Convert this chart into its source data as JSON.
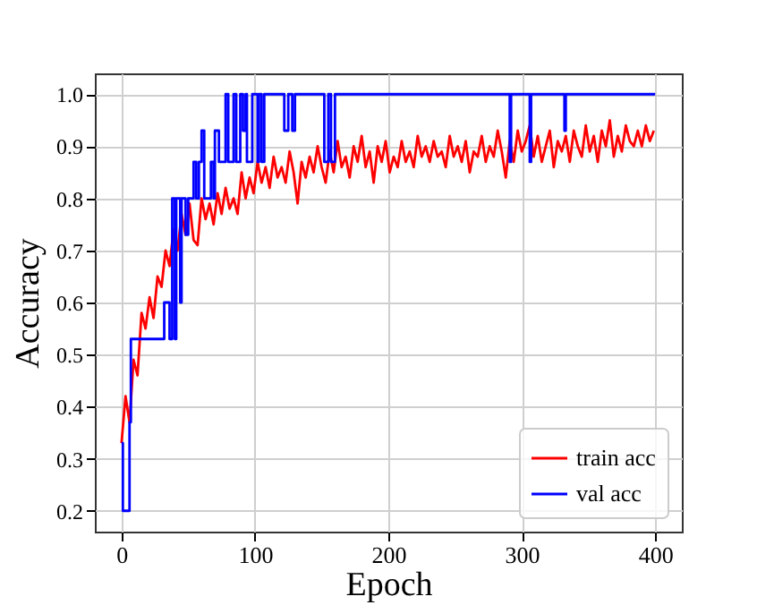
{
  "chart_data": {
    "type": "line",
    "xlabel": "Epoch",
    "ylabel": "Accuracy",
    "xlim": [
      -20,
      420
    ],
    "xticks": [
      0,
      100,
      200,
      300,
      400
    ],
    "ylim": [
      0.16,
      1.04
    ],
    "yticks": [
      0.2,
      0.3,
      0.4,
      0.5,
      0.6,
      0.7,
      0.8,
      0.9,
      {
        "value": 1,
        "label": "1.0"
      }
    ],
    "grid": true,
    "legend": "bottom right",
    "series": [
      {
        "name": "train acc",
        "color": "#ff0000",
        "type": "line",
        "x": [
          0,
          3,
          6,
          9,
          12,
          15,
          18,
          21,
          24,
          27,
          30,
          33,
          36,
          39,
          42,
          45,
          48,
          51,
          54,
          57,
          60,
          63,
          66,
          69,
          72,
          75,
          78,
          81,
          84,
          87,
          90,
          93,
          96,
          99,
          102,
          105,
          108,
          111,
          114,
          117,
          120,
          123,
          126,
          129,
          132,
          135,
          138,
          141,
          144,
          147,
          150,
          153,
          156,
          159,
          162,
          165,
          168,
          171,
          174,
          177,
          180,
          183,
          186,
          189,
          192,
          195,
          198,
          201,
          204,
          207,
          210,
          213,
          216,
          219,
          222,
          225,
          228,
          231,
          234,
          237,
          240,
          243,
          246,
          249,
          252,
          255,
          258,
          261,
          264,
          267,
          270,
          273,
          276,
          279,
          282,
          285,
          288,
          291,
          294,
          297,
          300,
          303,
          306,
          309,
          312,
          315,
          318,
          321,
          324,
          327,
          330,
          333,
          336,
          339,
          342,
          345,
          348,
          351,
          354,
          357,
          360,
          363,
          366,
          369,
          372,
          375,
          378,
          381,
          384,
          387,
          390,
          393,
          396,
          399
        ],
        "values": [
          0.33,
          0.42,
          0.37,
          0.49,
          0.46,
          0.58,
          0.55,
          0.61,
          0.57,
          0.65,
          0.63,
          0.7,
          0.67,
          0.74,
          0.7,
          0.77,
          0.73,
          0.79,
          0.72,
          0.71,
          0.8,
          0.76,
          0.79,
          0.75,
          0.81,
          0.77,
          0.82,
          0.78,
          0.8,
          0.77,
          0.85,
          0.8,
          0.84,
          0.81,
          0.87,
          0.83,
          0.86,
          0.82,
          0.88,
          0.84,
          0.86,
          0.83,
          0.89,
          0.85,
          0.79,
          0.87,
          0.84,
          0.88,
          0.85,
          0.9,
          0.86,
          0.83,
          0.89,
          0.85,
          0.91,
          0.86,
          0.88,
          0.84,
          0.9,
          0.87,
          0.92,
          0.86,
          0.89,
          0.83,
          0.9,
          0.87,
          0.91,
          0.85,
          0.88,
          0.86,
          0.91,
          0.87,
          0.89,
          0.86,
          0.92,
          0.88,
          0.9,
          0.87,
          0.91,
          0.88,
          0.89,
          0.86,
          0.92,
          0.88,
          0.9,
          0.87,
          0.91,
          0.85,
          0.89,
          0.88,
          0.92,
          0.87,
          0.9,
          0.88,
          0.93,
          0.89,
          0.84,
          0.91,
          0.87,
          0.93,
          0.89,
          0.91,
          0.94,
          0.88,
          0.92,
          0.87,
          0.9,
          0.93,
          0.86,
          0.91,
          0.89,
          0.92,
          0.87,
          0.93,
          0.9,
          0.88,
          0.94,
          0.89,
          0.92,
          0.87,
          0.93,
          0.9,
          0.95,
          0.88,
          0.92,
          0.89,
          0.94,
          0.91,
          0.9,
          0.93,
          0.9,
          0.94,
          0.91,
          0.93
        ]
      },
      {
        "name": "val acc",
        "color": "#0000ff",
        "type": "step",
        "x": [
          0,
          1,
          6,
          7,
          32,
          36,
          38,
          40,
          41,
          44,
          45,
          48,
          50,
          54,
          56,
          58,
          60,
          62,
          67,
          69,
          70,
          73,
          78,
          80,
          84,
          86,
          89,
          91,
          93,
          94,
          98,
          102,
          103,
          105,
          107,
          122,
          125,
          128,
          130,
          152,
          155,
          157,
          160,
          291,
          292,
          306,
          307,
          332,
          333,
          400
        ],
        "values": [
          0.33,
          0.2,
          0.37,
          0.53,
          0.6,
          0.53,
          0.8,
          0.53,
          0.8,
          0.6,
          0.8,
          0.73,
          0.8,
          0.87,
          0.8,
          0.87,
          0.93,
          0.8,
          0.87,
          0.8,
          0.93,
          0.87,
          1.0,
          0.87,
          1.0,
          0.87,
          1.0,
          0.93,
          1.0,
          0.87,
          1.0,
          0.87,
          1.0,
          0.87,
          1.0,
          0.93,
          1.0,
          0.93,
          1.0,
          0.87,
          1.0,
          0.87,
          1.0,
          0.87,
          1.0,
          0.87,
          1.0,
          0.93,
          1.0,
          1.0
        ]
      }
    ]
  }
}
